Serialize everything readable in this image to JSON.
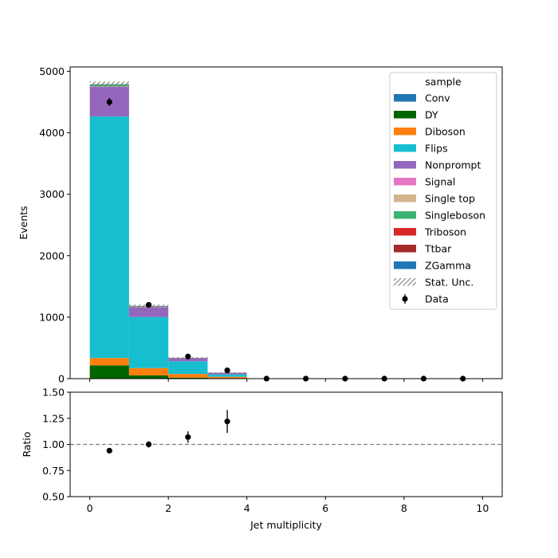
{
  "chart_data": [
    {
      "type": "bar",
      "stacked": true,
      "xlabel": "",
      "ylabel": "Events",
      "xlim": [
        -0.5,
        10.5
      ],
      "ylim": [
        0,
        5070
      ],
      "yticks": [
        0,
        1000,
        2000,
        3000,
        4000,
        5000
      ],
      "bin_edges": [
        0,
        1,
        2,
        3,
        4,
        5,
        6,
        7,
        8,
        9,
        10
      ],
      "legend": {
        "title": "sample",
        "placement": "top-right",
        "stat_unc_label": "Stat. Unc.",
        "data_label": "Data"
      },
      "series": [
        {
          "name": "Conv",
          "color": "#1f77b4",
          "values": [
            5,
            2,
            1,
            0,
            0,
            0,
            0,
            0,
            0,
            0
          ]
        },
        {
          "name": "DY",
          "color": "#006400",
          "values": [
            210,
            50,
            15,
            5,
            0,
            0,
            0,
            0,
            0,
            0
          ]
        },
        {
          "name": "Diboson",
          "color": "#ff7f0e",
          "values": [
            120,
            120,
            60,
            25,
            0,
            0,
            0,
            0,
            0,
            0
          ]
        },
        {
          "name": "Flips",
          "color": "#17becf",
          "values": [
            3930,
            830,
            205,
            40,
            0,
            0,
            0,
            0,
            0,
            0
          ]
        },
        {
          "name": "Nonprompt",
          "color": "#9467bd",
          "values": [
            480,
            160,
            50,
            25,
            0,
            0,
            0,
            0,
            0,
            0
          ]
        },
        {
          "name": "Signal",
          "color": "#e377c2",
          "values": [
            5,
            3,
            1,
            0,
            0,
            0,
            0,
            0,
            0,
            0
          ]
        },
        {
          "name": "Single top",
          "color": "#d2b48c",
          "values": [
            3,
            2,
            1,
            0,
            0,
            0,
            0,
            0,
            0,
            0
          ]
        },
        {
          "name": "Singleboson",
          "color": "#3cb371",
          "values": [
            30,
            10,
            2,
            0,
            0,
            0,
            0,
            0,
            0,
            0
          ]
        },
        {
          "name": "Triboson",
          "color": "#d62728",
          "values": [
            1,
            1,
            0,
            0,
            0,
            0,
            0,
            0,
            0,
            0
          ]
        },
        {
          "name": "Ttbar",
          "color": "#a52a2a",
          "values": [
            2,
            2,
            2,
            2,
            0,
            0,
            0,
            0,
            0,
            0
          ]
        },
        {
          "name": "ZGamma",
          "color": "#1f77b4",
          "values": [
            4,
            2,
            1,
            0,
            0,
            0,
            0,
            0,
            0,
            0
          ]
        }
      ],
      "data": {
        "name": "Data",
        "x": [
          0.5,
          1.5,
          2.5,
          3.5,
          4.5,
          5.5,
          6.5,
          7.5,
          8.5,
          9.5
        ],
        "y": [
          4500,
          1200,
          360,
          135,
          0,
          0,
          0,
          0,
          0,
          0
        ],
        "yerr": [
          67,
          35,
          19,
          12,
          0,
          0,
          0,
          0,
          0,
          0
        ]
      }
    },
    {
      "type": "scatter",
      "xlabel": "Jet multiplicity",
      "ylabel": "Ratio",
      "xlim": [
        -0.5,
        10.5
      ],
      "ylim": [
        0.5,
        1.5
      ],
      "xticks": [
        0,
        2,
        4,
        6,
        8,
        10
      ],
      "yticks": [
        0.5,
        0.75,
        1.0,
        1.25,
        1.5
      ],
      "ytick_labels": [
        "0.50",
        "0.75",
        "1.00",
        "1.25",
        "1.50"
      ],
      "reference_line": 1.0,
      "x": [
        0.5,
        1.5,
        2.5,
        3.5
      ],
      "y": [
        0.94,
        1.0,
        1.07,
        1.22
      ],
      "yerr": [
        0.015,
        0.03,
        0.055,
        0.11
      ]
    }
  ]
}
